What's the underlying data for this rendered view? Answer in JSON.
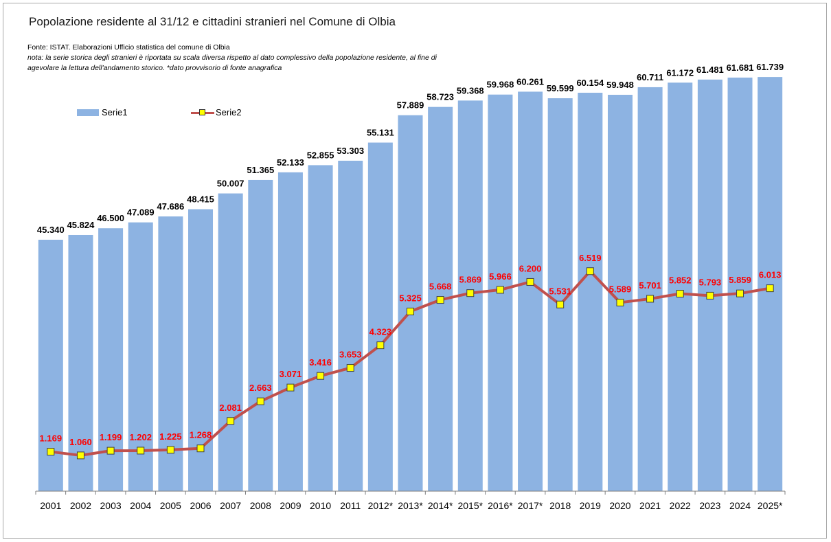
{
  "header": {
    "title": "Popolazione residente al 31/12 e cittadini stranieri nel Comune di Olbia",
    "source": "Fonte: ISTAT.  Elaborazioni Ufficio statistica del comune di Olbia",
    "note_line1": "nota: la serie storica degli stranieri è riportata su scala diversa rispetto al dato complessivo della popolazione residente, al fine di",
    "note_line2": "agevolare la lettura dell'andamento storico. *dato provvisorio di fonte anagrafica"
  },
  "legend": {
    "series1": "Serie1",
    "series2": "Serie2"
  },
  "colors": {
    "bar": "#8db3e2",
    "line": "#c0504d",
    "marker_fill": "#ffff00",
    "marker_stroke": "#404040",
    "bar_label": "#000000",
    "line_label": "#ff0000",
    "axis": "#7f7f7f"
  },
  "chart_data": {
    "type": "bar",
    "title": "Popolazione residente al 31/12 e cittadini stranieri nel Comune di Olbia",
    "xlabel": "",
    "ylabel": "",
    "grid": false,
    "legend_position": "top-left",
    "categories": [
      "2001",
      "2002",
      "2003",
      "2004",
      "2005",
      "2006",
      "2007",
      "2008",
      "2009",
      "2010",
      "2011",
      "2012*",
      "2013*",
      "2014*",
      "2015*",
      "2016*",
      "2017*",
      "2018",
      "2019",
      "2020",
      "2021",
      "2022",
      "2023",
      "2024",
      "2025*"
    ],
    "series": [
      {
        "name": "Serie1",
        "type": "bar",
        "axis": "primary",
        "ylim": [
          20000,
          65000
        ],
        "values": [
          45340,
          45824,
          46500,
          47089,
          47686,
          48415,
          50007,
          51365,
          52133,
          52855,
          53303,
          55131,
          57889,
          58723,
          59368,
          59968,
          60261,
          59599,
          60154,
          59948,
          60711,
          61172,
          61481,
          61681,
          61739
        ],
        "labels": [
          "45.340",
          "45.824",
          "46.500",
          "47.089",
          "47.686",
          "48.415",
          "50.007",
          "51.365",
          "52.133",
          "52.855",
          "53.303",
          "55.131",
          "57.889",
          "58.723",
          "59.368",
          "59.968",
          "60.261",
          "59.599",
          "60.154",
          "59.948",
          "60.711",
          "61.172",
          "61.481",
          "61.681",
          "61.739"
        ]
      },
      {
        "name": "Serie2",
        "type": "line",
        "axis": "secondary",
        "ylim": [
          0,
          8000
        ],
        "values": [
          1169,
          1060,
          1199,
          1202,
          1225,
          1268,
          2081,
          2663,
          3071,
          3416,
          3653,
          4323,
          5325,
          5668,
          5869,
          5966,
          6200,
          5531,
          6519,
          5589,
          5701,
          5852,
          5793,
          5859,
          6013
        ],
        "labels": [
          "1.169",
          "1.060",
          "1.199",
          "1.202",
          "1.225",
          "1.268",
          "2.081",
          "2.663",
          "3.071",
          "3.416",
          "3.653",
          "4.323",
          "5.325",
          "5.668",
          "5.869",
          "5.966",
          "6.200",
          "5.531",
          "6.519",
          "5.589",
          "5.701",
          "5.852",
          "5.793",
          "5.859",
          "6.013"
        ]
      }
    ]
  }
}
